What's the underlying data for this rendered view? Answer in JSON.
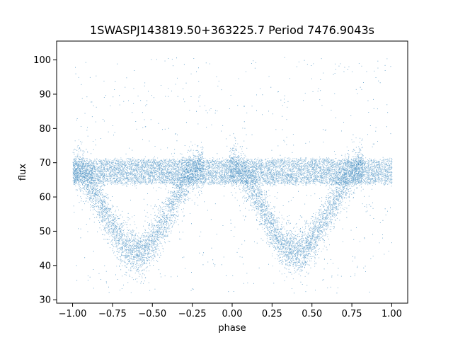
{
  "chart_data": {
    "type": "scatter",
    "title": "1SWASPJ143819.50+363225.7 Period 7476.9043s",
    "xlabel": "phase",
    "ylabel": "flux",
    "xlim": [
      -1.1,
      1.1
    ],
    "ylim": [
      29,
      105.5
    ],
    "xticks": [
      -1.0,
      -0.75,
      -0.5,
      -0.25,
      0.0,
      0.25,
      0.5,
      0.75,
      1.0
    ],
    "xtick_labels": [
      "−1.00",
      "−0.75",
      "−0.50",
      "−0.25",
      "0.00",
      "0.25",
      "0.50",
      "0.75",
      "1.00"
    ],
    "yticks": [
      30,
      40,
      50,
      60,
      70,
      80,
      90,
      100
    ],
    "ytick_labels": [
      "30",
      "40",
      "50",
      "60",
      "70",
      "80",
      "90",
      "100"
    ],
    "grid": false,
    "point_color": "#1f77b4",
    "series": [
      {
        "description_of_distribution": "dense points folded over two periods",
        "phase_range": [
          -1.0,
          1.0
        ],
        "baseline_flux_band": [
          64,
          71
        ],
        "dip_centers": [
          -0.6,
          0.4
        ],
        "dip_min_flux": 44,
        "dip_half_width": 0.42,
        "outlier_flux_range": [
          32,
          101
        ]
      }
    ]
  }
}
